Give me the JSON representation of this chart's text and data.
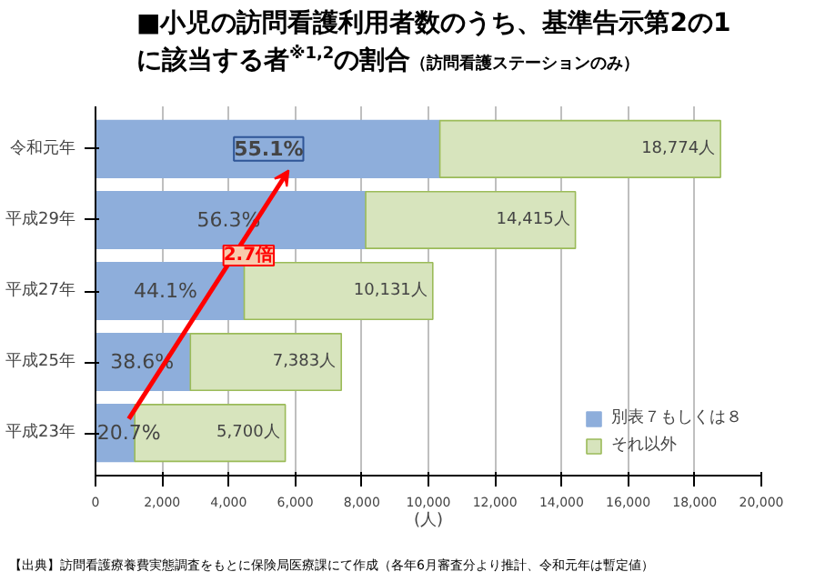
{
  "chart_data": {
    "type": "bar",
    "orientation": "horizontal",
    "stacked": true,
    "title": "■小児の訪問看護利用者数のうち、基準告示第2の1に該当する者$^{※1,2}$の割合",
    "subtitle": "（訪問看護ステーションのみ）",
    "categories": [
      "令和元年",
      "平成29年",
      "平成27年",
      "平成25年",
      "平成23年"
    ],
    "series": [
      {
        "name": "別表７もしくは８",
        "color": "#8eaedb",
        "values": [
          10344,
          8116,
          4468,
          2850,
          1180
        ]
      },
      {
        "name": "それ以外",
        "color": "#d7e4bd",
        "values": [
          8430,
          6299,
          5663,
          4533,
          4520
        ]
      }
    ],
    "totals": [
      "18,774人",
      "14,415人",
      "10,131人",
      "7,383人",
      "5,700人"
    ],
    "xlim": [
      0,
      20000
    ],
    "xticks": [
      0,
      {
        "value": 2000,
        "label": "2,000"
      },
      {
        "value": 4000,
        "label": "4,000"
      },
      {
        "value": 6000,
        "label": "6,000"
      },
      {
        "value": 8000,
        "label": "8,000"
      },
      {
        "value": 10000,
        "label": "10,000"
      },
      {
        "value": 12000,
        "label": "12,000"
      },
      {
        "value": 14000,
        "label": "14,000"
      },
      {
        "value": 16000,
        "label": "16,000"
      },
      {
        "value": 18000,
        "label": "18,000"
      },
      {
        "value": 20000,
        "label": "20,000"
      }
    ],
    "xlabel": "(人)",
    "grid": "x",
    "legend": "bottom right",
    "annotations": [
      {
        "text": "55.1%",
        "x": 5200,
        "y": "令和元年"
      },
      {
        "text": "56.3%",
        "x": 4000,
        "y": "平成29年"
      },
      {
        "text": "44.1%",
        "x": 2100,
        "y": "平成27年"
      },
      {
        "text": "38.6%",
        "x": 1400,
        "y": "平成25年"
      },
      {
        "text": "20.7%",
        "x": 1000,
        "y": "平成23年"
      },
      "2.7倍",
      "【出典】訪問看護療養費実態調査をもとに保険局医療課にて作成（各年6月審査分より推計、令和元年は暫定値）"
    ]
  }
}
